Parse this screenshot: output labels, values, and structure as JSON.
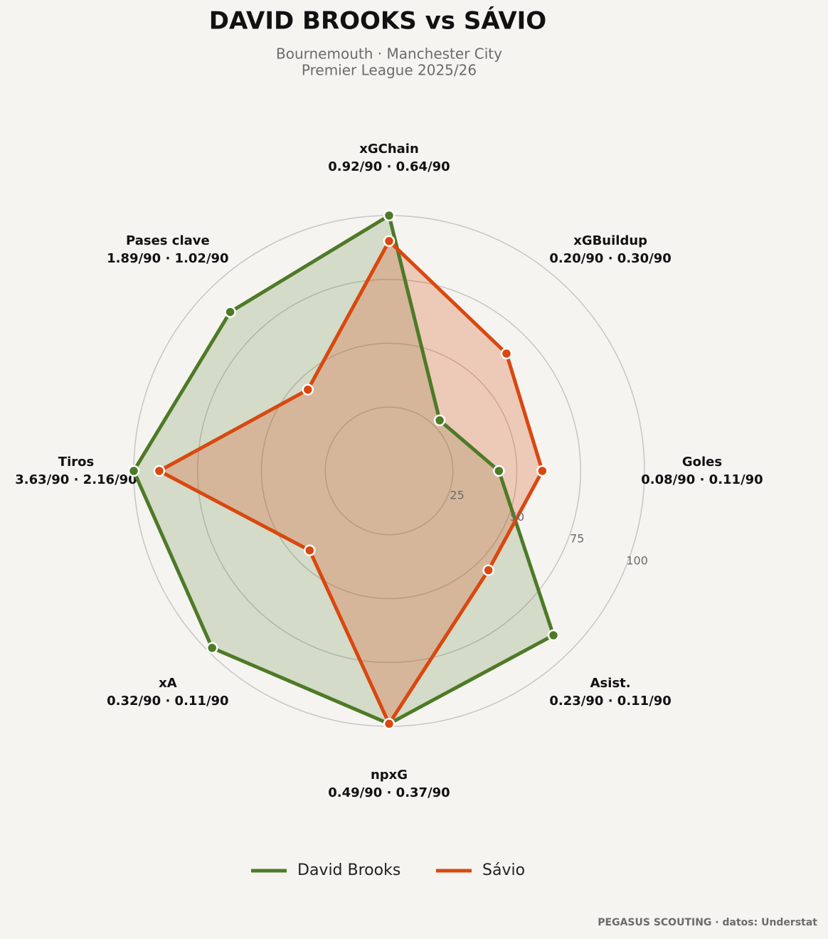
{
  "chart_data": {
    "type": "radar",
    "title": "DAVID BROOKS  vs  SÁVIO",
    "subtitle": [
      "Bournemouth · Manchester City",
      "Premier League 2025/26"
    ],
    "categories": [
      "xGChain",
      "xGBuildup",
      "Goles",
      "Asist.",
      "npxG",
      "xA",
      "Tiros",
      "Pases clave"
    ],
    "category_stats": [
      "0.92/90 · 0.64/90",
      "0.20/90 · 0.30/90",
      "0.08/90 · 0.11/90",
      "0.23/90 · 0.11/90",
      "0.49/90 · 0.37/90",
      "0.32/90 · 0.11/90",
      "3.63/90 · 2.16/90",
      "1.89/90 · 1.02/90"
    ],
    "series": [
      {
        "name": "David Brooks",
        "color": "#4e7a27",
        "values": [
          100,
          28,
          43,
          91,
          99,
          98,
          100,
          88
        ]
      },
      {
        "name": "Sávio",
        "color": "#d9480f",
        "values": [
          90,
          65,
          60,
          55,
          99,
          44,
          90,
          45
        ]
      }
    ],
    "ylim": [
      0,
      100
    ],
    "yticks": [
      25,
      50,
      75,
      100
    ],
    "grid": true,
    "legend": "bottom",
    "footer": "PEGASUS SCOUTING · datos: Understat"
  }
}
